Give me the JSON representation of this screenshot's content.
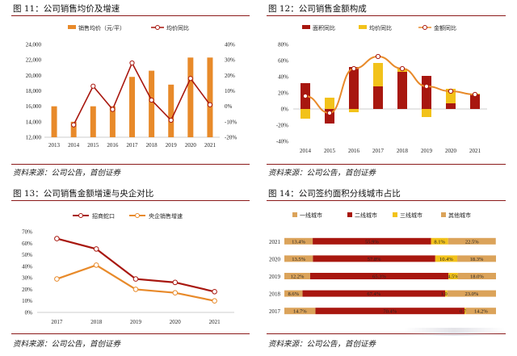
{
  "panels": [
    {
      "title": "图 11：公司销售均价及增速",
      "source": "资料来源：公司公告，首创证券"
    },
    {
      "title": "图 12：公司销售金额构成",
      "source": "资料来源：公司公告，首创证券"
    },
    {
      "title": "图 13：公司销售金额增速与央企对比",
      "source": "资料来源：公司公告，首创证券"
    },
    {
      "title": "图 14：公司签约面积分线城市占比",
      "source": "资料来源：公司公告，首创证券"
    }
  ],
  "colors": {
    "orange": "#e88a2a",
    "darkred": "#a8170f",
    "yellow": "#f2c21a",
    "tan": "#dba35a",
    "rule": "#8b1a1a"
  },
  "chart_data": [
    {
      "type": "bar",
      "categories": [
        "2013",
        "2014",
        "2015",
        "2016",
        "2017",
        "2018",
        "2019",
        "2020",
        "2021"
      ],
      "series": [
        {
          "name": "销售均价（元/平）",
          "type": "bar",
          "axis": "left",
          "values": [
            16000,
            14000,
            16000,
            16000,
            19800,
            20600,
            18800,
            22300,
            22300
          ]
        },
        {
          "name": "均价同比",
          "type": "line",
          "axis": "right",
          "values": [
            null,
            -12,
            13,
            -2,
            28,
            4,
            -9,
            18,
            1
          ]
        }
      ],
      "ylim": [
        12000,
        24000
      ],
      "yticks": [
        "12,000",
        "14,000",
        "16,000",
        "18,000",
        "20,000",
        "22,000",
        "24,000"
      ],
      "y2lim": [
        -20,
        40
      ],
      "y2ticks": [
        "-20%",
        "-10%",
        "0%",
        "10%",
        "20%",
        "30%",
        "40%"
      ]
    },
    {
      "type": "bar",
      "stacked": true,
      "categories": [
        "2014",
        "2015",
        "2016",
        "2017",
        "2018",
        "2019",
        "2020",
        "2021"
      ],
      "series": [
        {
          "name": "面积同比",
          "type": "bar",
          "values": [
            32,
            -18,
            52,
            28,
            46,
            41,
            7,
            18
          ]
        },
        {
          "name": "均价同比",
          "type": "bar",
          "values": [
            -12,
            14,
            -4,
            29,
            4,
            -10,
            18,
            1
          ]
        },
        {
          "name": "金额同比",
          "type": "line",
          "values": [
            16,
            -5,
            50,
            65,
            50,
            28,
            22,
            18
          ]
        }
      ],
      "ylim": [
        -40,
        80
      ],
      "yticks": [
        "-40%",
        "-20%",
        "0%",
        "20%",
        "40%",
        "60%",
        "80%"
      ]
    },
    {
      "type": "line",
      "categories": [
        "2017",
        "2018",
        "2019",
        "2020",
        "2021"
      ],
      "series": [
        {
          "name": "招商蛇口",
          "values": [
            64,
            55,
            29,
            26,
            18
          ]
        },
        {
          "name": "央企销售增速",
          "values": [
            29,
            41,
            20,
            17,
            10
          ]
        }
      ],
      "ylim": [
        0,
        70
      ],
      "yticks": [
        "0%",
        "10%",
        "20%",
        "30%",
        "40%",
        "50%",
        "60%",
        "70%"
      ]
    },
    {
      "type": "bar",
      "stacked": true,
      "horizontal": true,
      "categories": [
        "2021",
        "2020",
        "2019",
        "2018",
        "2017"
      ],
      "series": [
        {
          "name": "一线城市",
          "values": [
            13.4,
            13.5,
            12.2,
            8.6,
            14.7
          ],
          "labels": [
            "13.4%",
            "13.5%",
            "12.2%",
            "8.6%",
            "14.7%"
          ]
        },
        {
          "name": "二线城市",
          "values": [
            55.9,
            57.8,
            65.3,
            67.4,
            70.4
          ],
          "labels": [
            "55.9%",
            "57.8%",
            "65.3%",
            "67.4%",
            "70.4%"
          ]
        },
        {
          "name": "三线城市",
          "values": [
            8.1,
            10.4,
            4.5,
            1.0,
            0.7
          ],
          "labels": [
            "8.1%",
            "10.4%",
            "4.5%",
            "1.0%",
            "0.7%"
          ]
        },
        {
          "name": "其他城市",
          "values": [
            22.5,
            18.3,
            18.0,
            23.0,
            14.2
          ],
          "labels": [
            "22.5%",
            "18.3%",
            "18.0%",
            "23.0%",
            "14.2%"
          ]
        }
      ],
      "xlim": [
        0,
        100
      ]
    }
  ]
}
